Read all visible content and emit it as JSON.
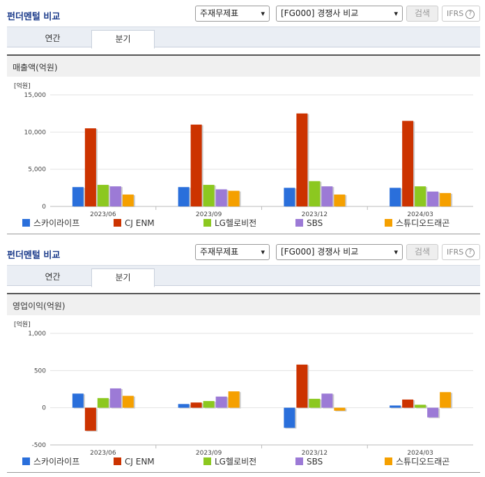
{
  "panels": [
    {
      "title": "펀더멘털 비교",
      "select1": "주재무제표",
      "select2": "[FG000] 경쟁사 비교",
      "search_label": "검색",
      "ifrs_label": "IFRS",
      "ifrs_help": "?",
      "tabs": [
        {
          "label": "연간"
        },
        {
          "label": "분기"
        }
      ],
      "active_tab": 1,
      "section_title": "매출액(억원)"
    },
    {
      "title": "펀더멘털 비교",
      "select1": "주재무제표",
      "select2": "[FG000] 경쟁사 비교",
      "search_label": "검색",
      "ifrs_label": "IFRS",
      "ifrs_help": "?",
      "tabs": [
        {
          "label": "연간"
        },
        {
          "label": "분기"
        }
      ],
      "active_tab": 1,
      "section_title": "영업이익(억원)"
    }
  ],
  "chart_data": [
    {
      "type": "bar",
      "unit_label": "[억원]",
      "categories": [
        "2023/06",
        "2023/09",
        "2023/12",
        "2024/03"
      ],
      "ylim": [
        0,
        15000
      ],
      "yticks": [
        0,
        5000,
        10000,
        15000
      ],
      "ytick_labels": [
        "0",
        "5,000",
        "10,000",
        "15,000"
      ],
      "grid": true,
      "legend_position": "bottom",
      "series": [
        {
          "name": "스카이라이프",
          "color": "#2a6fdb",
          "values": [
            2600,
            2600,
            2500,
            2500
          ]
        },
        {
          "name": "CJ ENM",
          "color": "#cc3300",
          "values": [
            10500,
            11000,
            12500,
            11500
          ]
        },
        {
          "name": "LG헬로비전",
          "color": "#8cc820",
          "values": [
            2900,
            2900,
            3400,
            2700
          ]
        },
        {
          "name": "SBS",
          "color": "#9c7ad6",
          "values": [
            2700,
            2300,
            2700,
            2000
          ]
        },
        {
          "name": "스튜디오드래곤",
          "color": "#f5a000",
          "values": [
            1600,
            2100,
            1600,
            1800
          ]
        }
      ]
    },
    {
      "type": "bar",
      "unit_label": "[억원]",
      "categories": [
        "2023/06",
        "2023/09",
        "2023/12",
        "2024/03"
      ],
      "ylim": [
        -500,
        1000
      ],
      "yticks": [
        -500,
        0,
        500,
        1000
      ],
      "ytick_labels": [
        "-500",
        "0",
        "500",
        "1,000"
      ],
      "grid": true,
      "legend_position": "bottom",
      "series": [
        {
          "name": "스카이라이프",
          "color": "#2a6fdb",
          "values": [
            190,
            50,
            -270,
            30
          ]
        },
        {
          "name": "CJ ENM",
          "color": "#cc3300",
          "values": [
            -310,
            70,
            580,
            110
          ]
        },
        {
          "name": "LG헬로비전",
          "color": "#8cc820",
          "values": [
            130,
            90,
            120,
            40
          ]
        },
        {
          "name": "SBS",
          "color": "#9c7ad6",
          "values": [
            260,
            150,
            190,
            -130
          ]
        },
        {
          "name": "스튜디오드래곤",
          "color": "#f5a000",
          "values": [
            160,
            220,
            -40,
            210
          ]
        }
      ]
    }
  ]
}
